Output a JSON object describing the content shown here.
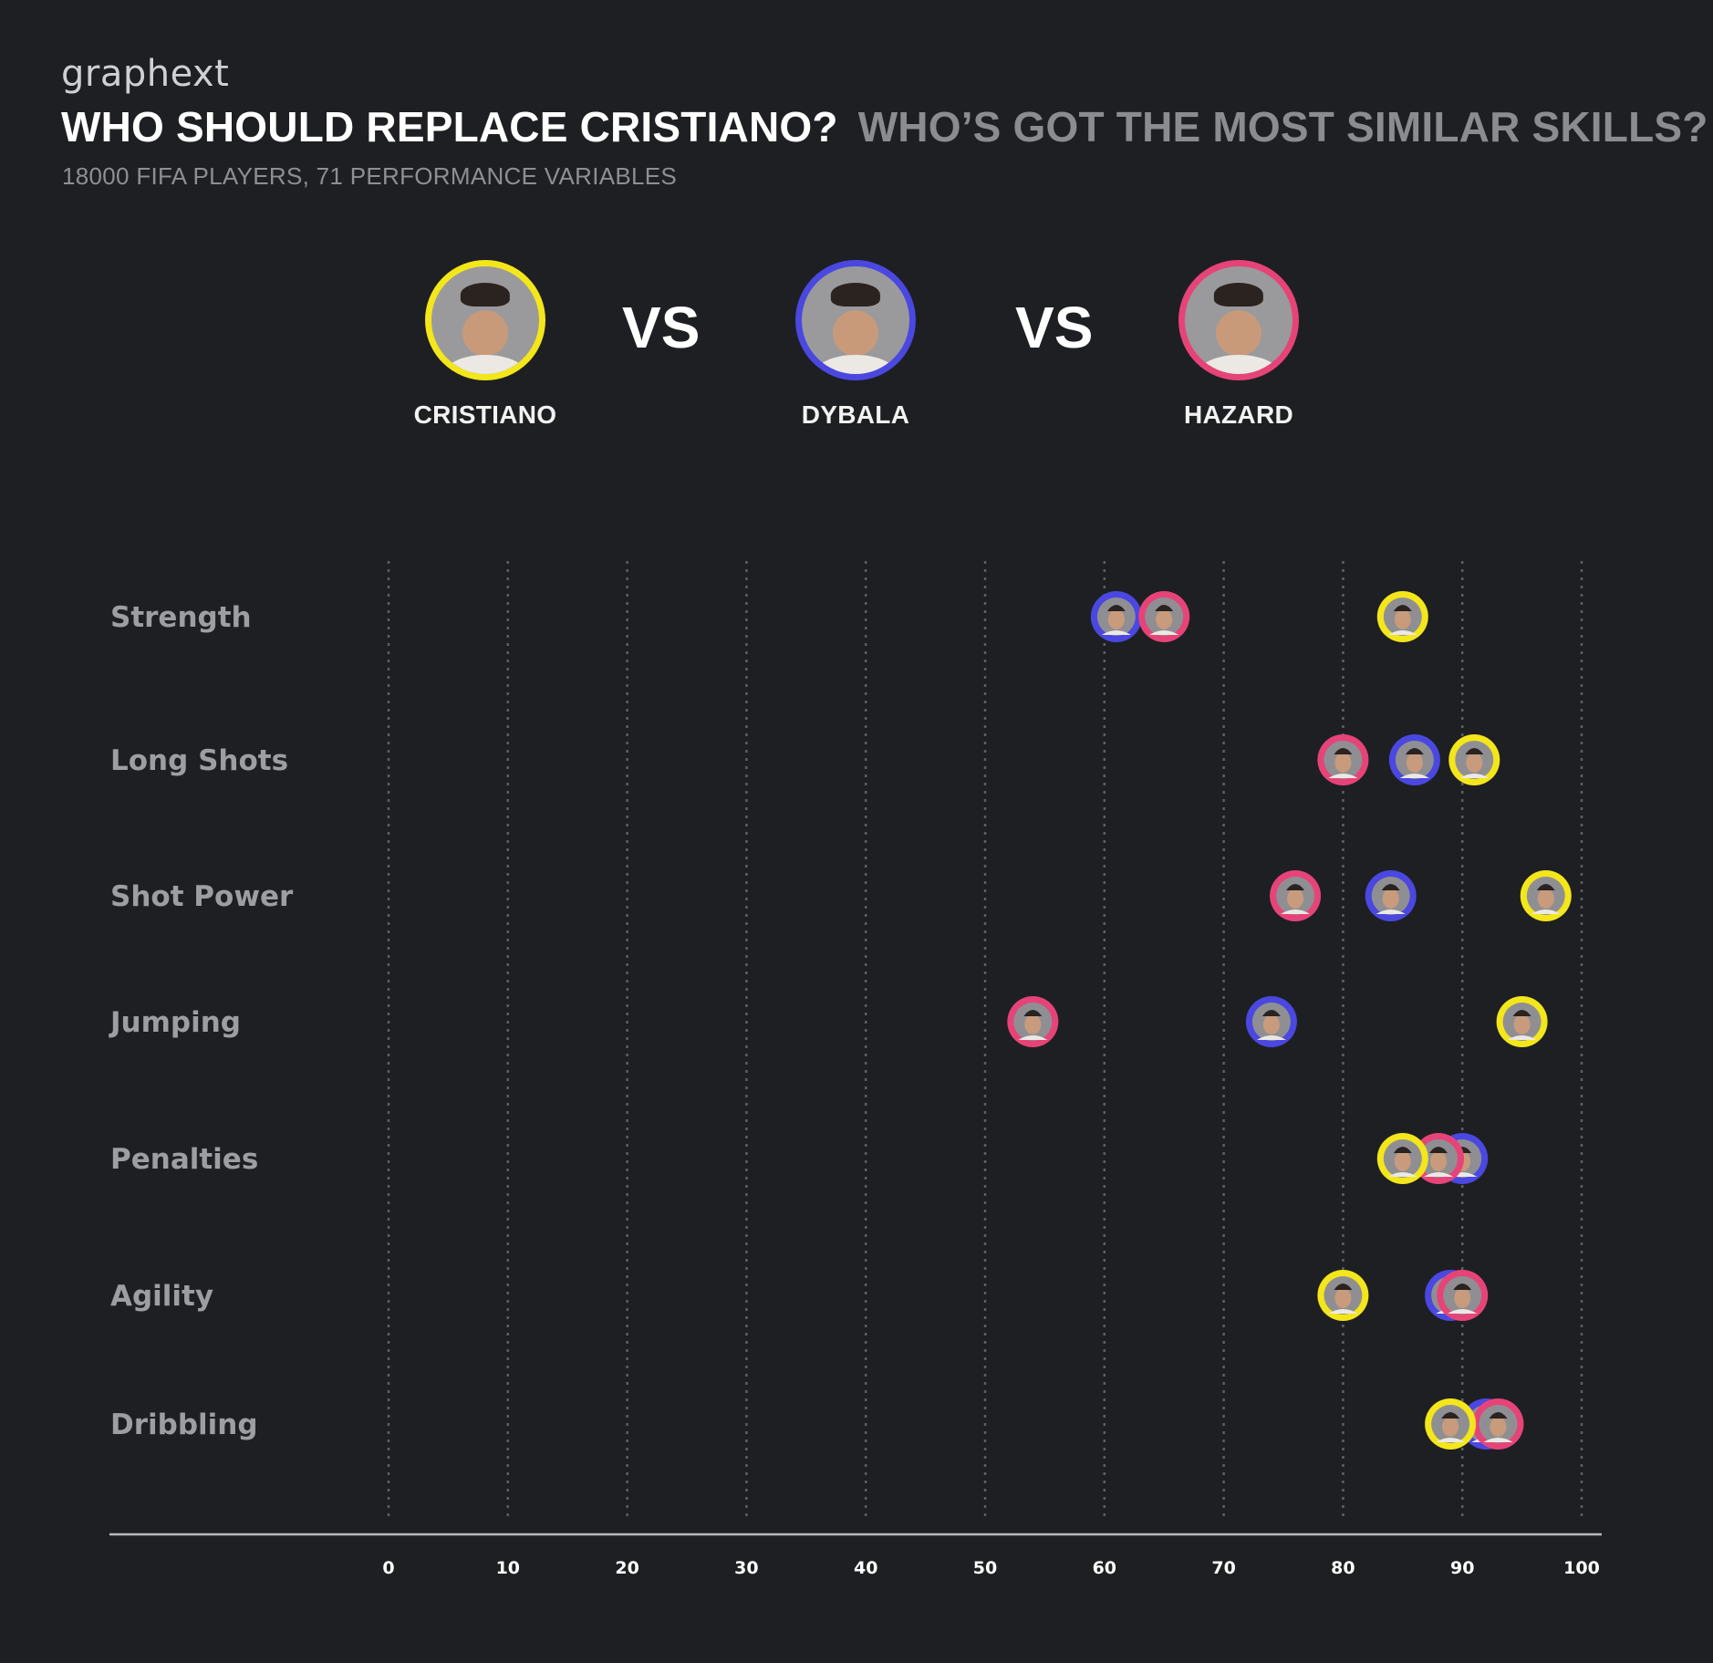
{
  "header": {
    "brand": "graphext",
    "title": "WHO SHOULD REPLACE CRISTIANO?",
    "title_secondary": "WHO’S GOT THE MOST SIMILAR SKILLS?",
    "subtitle": "18000 FIFA PLAYERS, 71 PERFORMANCE VARIABLES"
  },
  "players": [
    {
      "name": "CRISTIANO",
      "color": "#f3e61b",
      "icon": "cristiano-face-icon"
    },
    {
      "name": "DYBALA",
      "color": "#4a48e0",
      "icon": "dybala-face-icon"
    },
    {
      "name": "HAZARD",
      "color": "#e64478",
      "icon": "hazard-face-icon"
    }
  ],
  "vs_label": "VS",
  "chart_data": {
    "type": "scatter",
    "title": "",
    "xlabel": "",
    "ylabel": "",
    "xlim": [
      0,
      100
    ],
    "x_ticks": [
      0,
      10,
      20,
      30,
      40,
      50,
      60,
      70,
      80,
      90,
      100
    ],
    "grid": "vertical dotted",
    "categories": [
      "Strength",
      "Long Shots",
      "Shot Power",
      "Jumping",
      "Penalties",
      "Agility",
      "Dribbling"
    ],
    "series": [
      {
        "name": "CRISTIANO",
        "color": "#f3e61b",
        "values": [
          85,
          91,
          97,
          95,
          85,
          80,
          89
        ]
      },
      {
        "name": "DYBALA",
        "color": "#4a48e0",
        "values": [
          61,
          86,
          84,
          74,
          90,
          89,
          92
        ]
      },
      {
        "name": "HAZARD",
        "color": "#e64478",
        "values": [
          65,
          80,
          76,
          54,
          88,
          90,
          93
        ]
      }
    ]
  }
}
